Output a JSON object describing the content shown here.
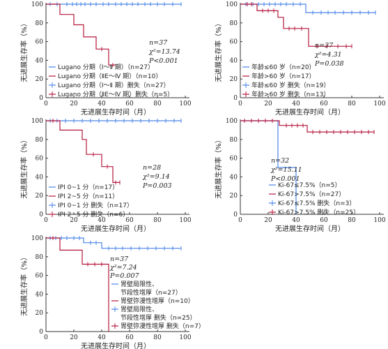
{
  "figure": {
    "y_label": "无进展生存率（%）",
    "x_label": "无进展生存时间（月）"
  },
  "colors": {
    "blue": "#4a86e8",
    "red": "#b5173b",
    "axis": "#333333"
  },
  "chart_data": [
    {
      "type": "line",
      "subtype": "kaplan-meier",
      "xlabel": "无进展生存时间（月）",
      "ylabel": "无进展生存率（%）",
      "xlim": [
        0,
        100
      ],
      "ylim": [
        0,
        100
      ],
      "xticks": [
        0,
        20,
        40,
        60,
        80,
        100
      ],
      "yticks": [
        0,
        20,
        40,
        60,
        80,
        100
      ],
      "stats": [
        "n=37",
        "χ²=13.74",
        "P<0.001"
      ],
      "legend": [
        "Lugano 分期（Ⅰ～Ⅱ 期）（n=27）",
        "Lugano 分期（ⅡE～Ⅳ 期）（n=10）",
        "Lugano 分期（Ⅰ～Ⅱ 期）删失（n=27）",
        "Lugano 分期（ⅡE～Ⅳ 期）删失（n=5）"
      ],
      "series": [
        {
          "name": "Lugano 分期（Ⅰ～Ⅱ 期）（n=27）",
          "color": "#4a86e8",
          "steps": [
            [
              0,
              100
            ],
            [
              97,
              100
            ]
          ],
          "censors": [
            [
              3,
              100
            ],
            [
              8,
              100
            ],
            [
              15,
              100
            ],
            [
              19,
              100
            ],
            [
              22,
              100
            ],
            [
              25,
              100
            ],
            [
              28,
              100
            ],
            [
              32,
              100
            ],
            [
              36,
              100
            ],
            [
              41,
              100
            ],
            [
              45,
              100
            ],
            [
              50,
              100
            ],
            [
              54,
              100
            ],
            [
              58,
              100
            ],
            [
              62,
              100
            ],
            [
              66,
              100
            ],
            [
              71,
              100
            ],
            [
              75,
              100
            ],
            [
              80,
              100
            ],
            [
              85,
              100
            ],
            [
              91,
              100
            ],
            [
              97,
              100
            ]
          ]
        },
        {
          "name": "Lugano 分期（ⅡE～Ⅳ 期）（n=10）",
          "color": "#b5173b",
          "steps": [
            [
              0,
              100
            ],
            [
              10,
              100
            ],
            [
              10,
              89
            ],
            [
              20,
              89
            ],
            [
              20,
              78
            ],
            [
              27,
              78
            ],
            [
              27,
              65
            ],
            [
              36,
              65
            ],
            [
              36,
              52
            ],
            [
              45,
              52
            ],
            [
              45,
              35
            ],
            [
              50,
              35
            ]
          ],
          "censors": [
            [
              40,
              52
            ],
            [
              48,
              35
            ]
          ]
        }
      ]
    },
    {
      "type": "line",
      "subtype": "kaplan-meier",
      "xlabel": "无进展生存时间（月）",
      "ylabel": "无进展生存率（%）",
      "xlim": [
        0,
        100
      ],
      "ylim": [
        0,
        100
      ],
      "xticks": [
        0,
        20,
        40,
        60,
        80,
        100
      ],
      "yticks": [
        0,
        20,
        40,
        60,
        80,
        100
      ],
      "stats": [
        "n=37",
        "χ²=4.31",
        "P=0.038"
      ],
      "legend": [
        "年龄≤60 岁（n=20）",
        "年龄>60 岁（n=17）",
        "年龄≤60 岁 删失（n=19）",
        "年龄>60 岁 删失（n=13）"
      ],
      "series": [
        {
          "name": "年龄≤60 岁（n=20）",
          "color": "#4a86e8",
          "steps": [
            [
              0,
              100
            ],
            [
              47,
              100
            ],
            [
              47,
              91
            ],
            [
              97,
              91
            ]
          ],
          "censors": [
            [
              4,
              100
            ],
            [
              9,
              100
            ],
            [
              13,
              100
            ],
            [
              17,
              100
            ],
            [
              21,
              100
            ],
            [
              25,
              100
            ],
            [
              29,
              100
            ],
            [
              33,
              100
            ],
            [
              38,
              100
            ],
            [
              43,
              100
            ],
            [
              52,
              91
            ],
            [
              58,
              91
            ],
            [
              63,
              91
            ],
            [
              68,
              91
            ],
            [
              74,
              91
            ],
            [
              80,
              91
            ],
            [
              86,
              91
            ],
            [
              92,
              91
            ],
            [
              97,
              91
            ]
          ]
        },
        {
          "name": "年龄>60 岁（n=17）",
          "color": "#b5173b",
          "steps": [
            [
              0,
              100
            ],
            [
              12,
              100
            ],
            [
              12,
              93
            ],
            [
              27,
              93
            ],
            [
              27,
              86
            ],
            [
              31,
              86
            ],
            [
              31,
              74
            ],
            [
              49,
              74
            ],
            [
              49,
              55
            ],
            [
              80,
              55
            ]
          ],
          "censors": [
            [
              5,
              100
            ],
            [
              8,
              100
            ],
            [
              16,
              93
            ],
            [
              20,
              93
            ],
            [
              24,
              93
            ],
            [
              35,
              74
            ],
            [
              39,
              74
            ],
            [
              44,
              74
            ],
            [
              55,
              55
            ],
            [
              62,
              55
            ],
            [
              70,
              55
            ],
            [
              76,
              55
            ],
            [
              80,
              55
            ]
          ]
        }
      ]
    },
    {
      "type": "line",
      "subtype": "kaplan-meier",
      "xlabel": "无进展生存时间（月）",
      "ylabel": "无进展生存率（%）",
      "xlim": [
        0,
        100
      ],
      "ylim": [
        0,
        100
      ],
      "xticks": [
        0,
        20,
        40,
        60,
        80,
        100
      ],
      "yticks": [
        0,
        20,
        40,
        60,
        80,
        100
      ],
      "stats": [
        "n=28",
        "χ²=9.14",
        "P=0.003"
      ],
      "legend": [
        "IPI 0~1 分（n=17）",
        "IPI 2~5 分（n=11）",
        "IPI 0~1 分 删失（n=17）",
        "IPI 2~5 分 删失（n=6）"
      ],
      "series": [
        {
          "name": "IPI 0~1 分（n=17）",
          "color": "#4a86e8",
          "steps": [
            [
              0,
              100
            ],
            [
              97,
              100
            ]
          ],
          "censors": [
            [
              3,
              100
            ],
            [
              8,
              100
            ],
            [
              14,
              100
            ],
            [
              20,
              100
            ],
            [
              26,
              100
            ],
            [
              32,
              100
            ],
            [
              38,
              100
            ],
            [
              44,
              100
            ],
            [
              50,
              100
            ],
            [
              56,
              100
            ],
            [
              62,
              100
            ],
            [
              68,
              100
            ],
            [
              74,
              100
            ],
            [
              80,
              100
            ],
            [
              86,
              100
            ],
            [
              92,
              100
            ],
            [
              97,
              100
            ]
          ]
        },
        {
          "name": "IPI 2~5 分（n=11）",
          "color": "#b5173b",
          "steps": [
            [
              0,
              100
            ],
            [
              10,
              100
            ],
            [
              10,
              90
            ],
            [
              26,
              90
            ],
            [
              26,
              80
            ],
            [
              29,
              80
            ],
            [
              29,
              64
            ],
            [
              40,
              64
            ],
            [
              40,
              51
            ],
            [
              48,
              51
            ],
            [
              48,
              34
            ],
            [
              53,
              34
            ]
          ],
          "censors": [
            [
              5,
              100
            ],
            [
              34,
              64
            ],
            [
              44,
              51
            ],
            [
              50,
              34
            ],
            [
              53,
              34
            ]
          ]
        }
      ]
    },
    {
      "type": "line",
      "subtype": "kaplan-meier",
      "xlabel": "无进展生存时间（月）",
      "ylabel": "无进展生存率（%）",
      "xlim": [
        0,
        100
      ],
      "ylim": [
        0,
        100
      ],
      "xticks": [
        0,
        20,
        40,
        60,
        80,
        100
      ],
      "yticks": [
        0,
        20,
        40,
        60,
        80,
        100
      ],
      "stats": [
        "n=32",
        "χ²=15.11",
        "P<0.001"
      ],
      "legend": [
        "Ki-67≤7.5%（n=5）",
        "Ki-67>7.5%（n=27）",
        "Ki-67≤7.5% 删失（n=3）",
        "Ki-67>7.5% 删失（n=25）"
      ],
      "series": [
        {
          "name": "Ki-67≤7.5%（n=5）",
          "color": "#4a86e8",
          "steps": [
            [
              0,
              100
            ],
            [
              27,
              100
            ],
            [
              27,
              50
            ],
            [
              40,
              50
            ],
            [
              40,
              0
            ]
          ],
          "censors": []
        },
        {
          "name": "Ki-67>7.5%（n=27）",
          "color": "#b5173b",
          "steps": [
            [
              0,
              100
            ],
            [
              28,
              100
            ],
            [
              28,
              95
            ],
            [
              48,
              95
            ],
            [
              48,
              88
            ],
            [
              96,
              88
            ]
          ],
          "censors": [
            [
              3,
              100
            ],
            [
              8,
              100
            ],
            [
              13,
              100
            ],
            [
              18,
              100
            ],
            [
              23,
              100
            ],
            [
              33,
              95
            ],
            [
              37,
              95
            ],
            [
              41,
              95
            ],
            [
              45,
              95
            ],
            [
              52,
              88
            ],
            [
              57,
              88
            ],
            [
              62,
              88
            ],
            [
              67,
              88
            ],
            [
              72,
              88
            ],
            [
              77,
              88
            ],
            [
              82,
              88
            ],
            [
              87,
              88
            ],
            [
              92,
              88
            ],
            [
              96,
              88
            ]
          ]
        }
      ]
    },
    {
      "type": "line",
      "subtype": "kaplan-meier",
      "xlabel": "无进展生存时间（月）",
      "ylabel": "无进展生存率（%）",
      "xlim": [
        0,
        100
      ],
      "ylim": [
        0,
        100
      ],
      "xticks": [
        0,
        20,
        40,
        60,
        80,
        100
      ],
      "yticks": [
        0,
        20,
        40,
        60,
        80,
        100
      ],
      "stats": [
        "n=37",
        "χ²=7.24",
        "P=0.007"
      ],
      "legend": [
        "胃壁局限性、",
        "节段性增厚（n=27）",
        "胃壁弥漫性增厚（n=10）",
        "胃壁局限性、",
        "节段性增厚 删失（n=25）",
        "胃壁弥漫性增厚 删失（n=7）"
      ],
      "series": [
        {
          "name": "胃壁局限性、节段性增厚（n=27）",
          "color": "#4a86e8",
          "steps": [
            [
              0,
              100
            ],
            [
              27,
              100
            ],
            [
              27,
              95
            ],
            [
              40,
              95
            ],
            [
              40,
              89
            ],
            [
              97,
              89
            ]
          ],
          "censors": [
            [
              3,
              100
            ],
            [
              7,
              100
            ],
            [
              11,
              100
            ],
            [
              15,
              100
            ],
            [
              20,
              100
            ],
            [
              24,
              100
            ],
            [
              32,
              95
            ],
            [
              36,
              95
            ],
            [
              45,
              89
            ],
            [
              50,
              89
            ],
            [
              55,
              89
            ],
            [
              61,
              89
            ],
            [
              67,
              89
            ],
            [
              73,
              89
            ],
            [
              79,
              89
            ],
            [
              85,
              89
            ],
            [
              91,
              89
            ],
            [
              97,
              89
            ]
          ]
        },
        {
          "name": "胃壁弥漫性增厚（n=10）",
          "color": "#b5173b",
          "steps": [
            [
              0,
              100
            ],
            [
              10,
              100
            ],
            [
              10,
              87
            ],
            [
              26,
              87
            ],
            [
              26,
              72
            ],
            [
              45,
              72
            ],
            [
              45,
              0
            ]
          ],
          "censors": [
            [
              5,
              100
            ],
            [
              30,
              72
            ],
            [
              35,
              72
            ],
            [
              40,
              72
            ]
          ]
        }
      ]
    }
  ]
}
